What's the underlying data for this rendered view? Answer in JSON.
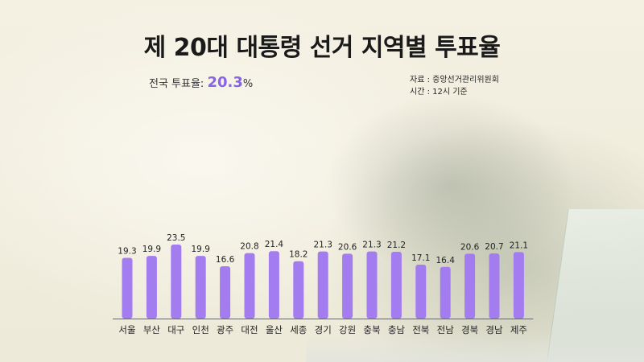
{
  "title": "제 20대 대통령 선거 지역별 투표율",
  "national": {
    "label": "전국 투표율:",
    "value": "20.3",
    "unit": "%"
  },
  "source": {
    "line1": "자료 : 중앙선거관리위원회",
    "line2": "시간 : 12시 기준"
  },
  "colors": {
    "bar": "#a37cf0",
    "accent": "#8a63e6"
  },
  "chart_data": {
    "type": "bar",
    "categories": [
      "서울",
      "부산",
      "대구",
      "인천",
      "광주",
      "대전",
      "울산",
      "세종",
      "경기",
      "강원",
      "충북",
      "충남",
      "전북",
      "전남",
      "경북",
      "경남",
      "제주"
    ],
    "values": [
      19.3,
      19.9,
      23.5,
      19.9,
      16.6,
      20.8,
      21.4,
      18.2,
      21.3,
      20.6,
      21.3,
      21.2,
      17.1,
      16.4,
      20.6,
      20.7,
      21.1
    ],
    "title": "제 20대 대통령 선거 지역별 투표율",
    "xlabel": "",
    "ylabel": "",
    "ylim": [
      0,
      26
    ]
  }
}
